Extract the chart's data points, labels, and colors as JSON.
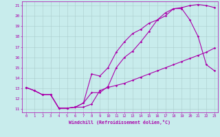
{
  "xlabel": "Windchill (Refroidissement éolien,°C)",
  "bg_color": "#c8ecec",
  "line_color": "#aa00aa",
  "grid_color": "#aacccc",
  "xlim": [
    -0.5,
    23.4
  ],
  "ylim": [
    10.7,
    21.4
  ],
  "xticks": [
    0,
    1,
    2,
    3,
    4,
    5,
    6,
    7,
    8,
    9,
    10,
    11,
    12,
    13,
    14,
    15,
    16,
    17,
    18,
    19,
    20,
    21,
    22,
    23
  ],
  "yticks": [
    11,
    12,
    13,
    14,
    15,
    16,
    17,
    18,
    19,
    20,
    21
  ],
  "line1_x": [
    0,
    1,
    2,
    3,
    4,
    5,
    6,
    7,
    8,
    9,
    10,
    11,
    12,
    13,
    14,
    15,
    16,
    17,
    18,
    19,
    20,
    21,
    22,
    23
  ],
  "line1_y": [
    13.1,
    12.8,
    12.4,
    12.4,
    11.1,
    11.1,
    11.2,
    11.2,
    11.5,
    12.8,
    13.1,
    13.3,
    13.5,
    13.8,
    14.1,
    14.4,
    14.7,
    15.0,
    15.3,
    15.6,
    15.9,
    16.2,
    16.5,
    16.9
  ],
  "line2_x": [
    0,
    1,
    2,
    3,
    4,
    5,
    6,
    7,
    8,
    9,
    10,
    11,
    12,
    13,
    14,
    15,
    16,
    17,
    18,
    19,
    20,
    21,
    22,
    23
  ],
  "line2_y": [
    13.1,
    12.8,
    12.4,
    12.4,
    11.1,
    11.1,
    11.2,
    11.6,
    12.6,
    12.6,
    13.2,
    15.0,
    16.0,
    16.6,
    17.5,
    18.5,
    19.6,
    20.3,
    20.7,
    20.7,
    19.6,
    18.0,
    15.3,
    14.7
  ],
  "line3_x": [
    0,
    1,
    2,
    3,
    4,
    5,
    6,
    7,
    8,
    9,
    10,
    11,
    12,
    13,
    14,
    15,
    16,
    17,
    18,
    19,
    20,
    21,
    22,
    23
  ],
  "line3_y": [
    13.1,
    12.8,
    12.4,
    12.4,
    11.1,
    11.1,
    11.2,
    11.6,
    14.4,
    14.2,
    15.0,
    16.5,
    17.5,
    18.3,
    18.7,
    19.3,
    19.6,
    20.0,
    20.7,
    20.8,
    21.0,
    21.1,
    21.0,
    20.8
  ]
}
